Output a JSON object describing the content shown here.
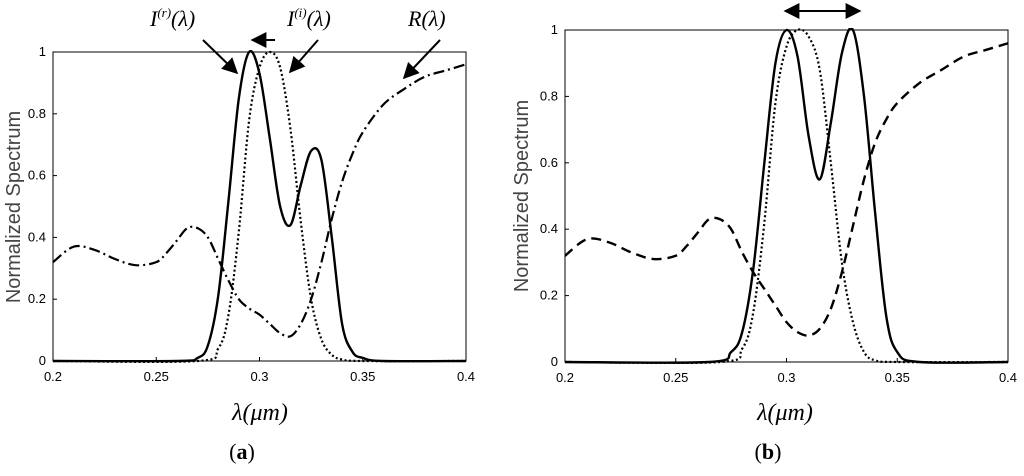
{
  "chart_data": [
    {
      "type": "line",
      "panel_label": "a",
      "xlabel": "λ(μm)",
      "ylabel": "Normalized Spectrum",
      "xlim": [
        0.2,
        0.4
      ],
      "ylim": [
        0,
        1
      ],
      "xticks": [
        "0.2",
        "0.25",
        "0.3",
        "0.35",
        "0.4"
      ],
      "yticks": [
        "0",
        "0.2",
        "0.4",
        "0.6",
        "0.8",
        "1"
      ],
      "grid": false,
      "annotations": [
        {
          "base": "I",
          "sup": "(r)",
          "tail": "(λ)"
        },
        {
          "base": "I",
          "sup": "(i)",
          "tail": "(λ)"
        },
        {
          "base": "R",
          "sup": "",
          "tail": "(λ)"
        }
      ],
      "series": [
        {
          "style": "solid",
          "x": [
            0.26,
            0.27,
            0.275,
            0.28,
            0.285,
            0.29,
            0.295,
            0.3,
            0.305,
            0.31,
            0.315,
            0.32,
            0.325,
            0.33,
            0.335,
            0.34,
            0.345,
            0.35,
            0.36
          ],
          "y": [
            0,
            0.01,
            0.05,
            0.21,
            0.52,
            0.85,
            1.0,
            0.93,
            0.72,
            0.5,
            0.44,
            0.57,
            0.68,
            0.65,
            0.4,
            0.12,
            0.03,
            0.01,
            0
          ]
        },
        {
          "style": "dotted",
          "x": [
            0.27,
            0.28,
            0.285,
            0.29,
            0.295,
            0.3,
            0.305,
            0.31,
            0.315,
            0.32,
            0.325,
            0.33,
            0.335,
            0.34,
            0.35
          ],
          "y": [
            0,
            0.04,
            0.15,
            0.42,
            0.78,
            0.95,
            1.0,
            0.95,
            0.75,
            0.45,
            0.2,
            0.07,
            0.02,
            0.005,
            0
          ]
        },
        {
          "style": "dashdot",
          "x": [
            0.2,
            0.21,
            0.22,
            0.23,
            0.24,
            0.25,
            0.255,
            0.26,
            0.265,
            0.27,
            0.275,
            0.28,
            0.285,
            0.29,
            0.295,
            0.3,
            0.305,
            0.31,
            0.315,
            0.32,
            0.325,
            0.33,
            0.335,
            0.34,
            0.345,
            0.35,
            0.36,
            0.37,
            0.38,
            0.39,
            0.4
          ],
          "y": [
            0.32,
            0.37,
            0.36,
            0.33,
            0.31,
            0.32,
            0.35,
            0.39,
            0.43,
            0.43,
            0.4,
            0.33,
            0.26,
            0.2,
            0.17,
            0.15,
            0.12,
            0.09,
            0.08,
            0.12,
            0.2,
            0.32,
            0.46,
            0.58,
            0.67,
            0.74,
            0.83,
            0.88,
            0.92,
            0.94,
            0.96
          ]
        }
      ]
    },
    {
      "type": "line",
      "panel_label": "b",
      "xlabel": "λ(μm)",
      "ylabel": "Normalized Spectrum",
      "xlim": [
        0.2,
        0.4
      ],
      "ylim": [
        0,
        1
      ],
      "xticks": [
        "0.2",
        "0.25",
        "0.3",
        "0.35",
        "0.4"
      ],
      "yticks": [
        "0",
        "0.2",
        "0.4",
        "0.6",
        "0.8",
        "1"
      ],
      "grid": false,
      "series": [
        {
          "style": "solid",
          "x": [
            0.265,
            0.275,
            0.28,
            0.285,
            0.29,
            0.295,
            0.3,
            0.305,
            0.31,
            0.315,
            0.32,
            0.325,
            0.33,
            0.335,
            0.34,
            0.345,
            0.35,
            0.36
          ],
          "y": [
            0,
            0.03,
            0.09,
            0.28,
            0.6,
            0.9,
            1.0,
            0.92,
            0.68,
            0.55,
            0.72,
            0.93,
            1.0,
            0.8,
            0.45,
            0.14,
            0.03,
            0
          ]
        },
        {
          "style": "dotted",
          "x": [
            0.27,
            0.28,
            0.285,
            0.29,
            0.295,
            0.3,
            0.305,
            0.31,
            0.315,
            0.32,
            0.325,
            0.33,
            0.335,
            0.34,
            0.35
          ],
          "y": [
            0,
            0.04,
            0.15,
            0.42,
            0.78,
            0.95,
            1.0,
            0.98,
            0.88,
            0.6,
            0.3,
            0.12,
            0.03,
            0.005,
            0
          ]
        },
        {
          "style": "dashed",
          "x": [
            0.2,
            0.21,
            0.22,
            0.23,
            0.24,
            0.25,
            0.255,
            0.26,
            0.265,
            0.27,
            0.275,
            0.28,
            0.285,
            0.29,
            0.295,
            0.3,
            0.305,
            0.31,
            0.315,
            0.32,
            0.325,
            0.33,
            0.335,
            0.34,
            0.345,
            0.35,
            0.36,
            0.37,
            0.38,
            0.39,
            0.4
          ],
          "y": [
            0.32,
            0.37,
            0.36,
            0.33,
            0.31,
            0.32,
            0.35,
            0.39,
            0.43,
            0.43,
            0.4,
            0.33,
            0.27,
            0.22,
            0.17,
            0.12,
            0.09,
            0.08,
            0.1,
            0.16,
            0.27,
            0.41,
            0.55,
            0.66,
            0.73,
            0.78,
            0.84,
            0.88,
            0.92,
            0.94,
            0.96
          ]
        }
      ]
    }
  ]
}
